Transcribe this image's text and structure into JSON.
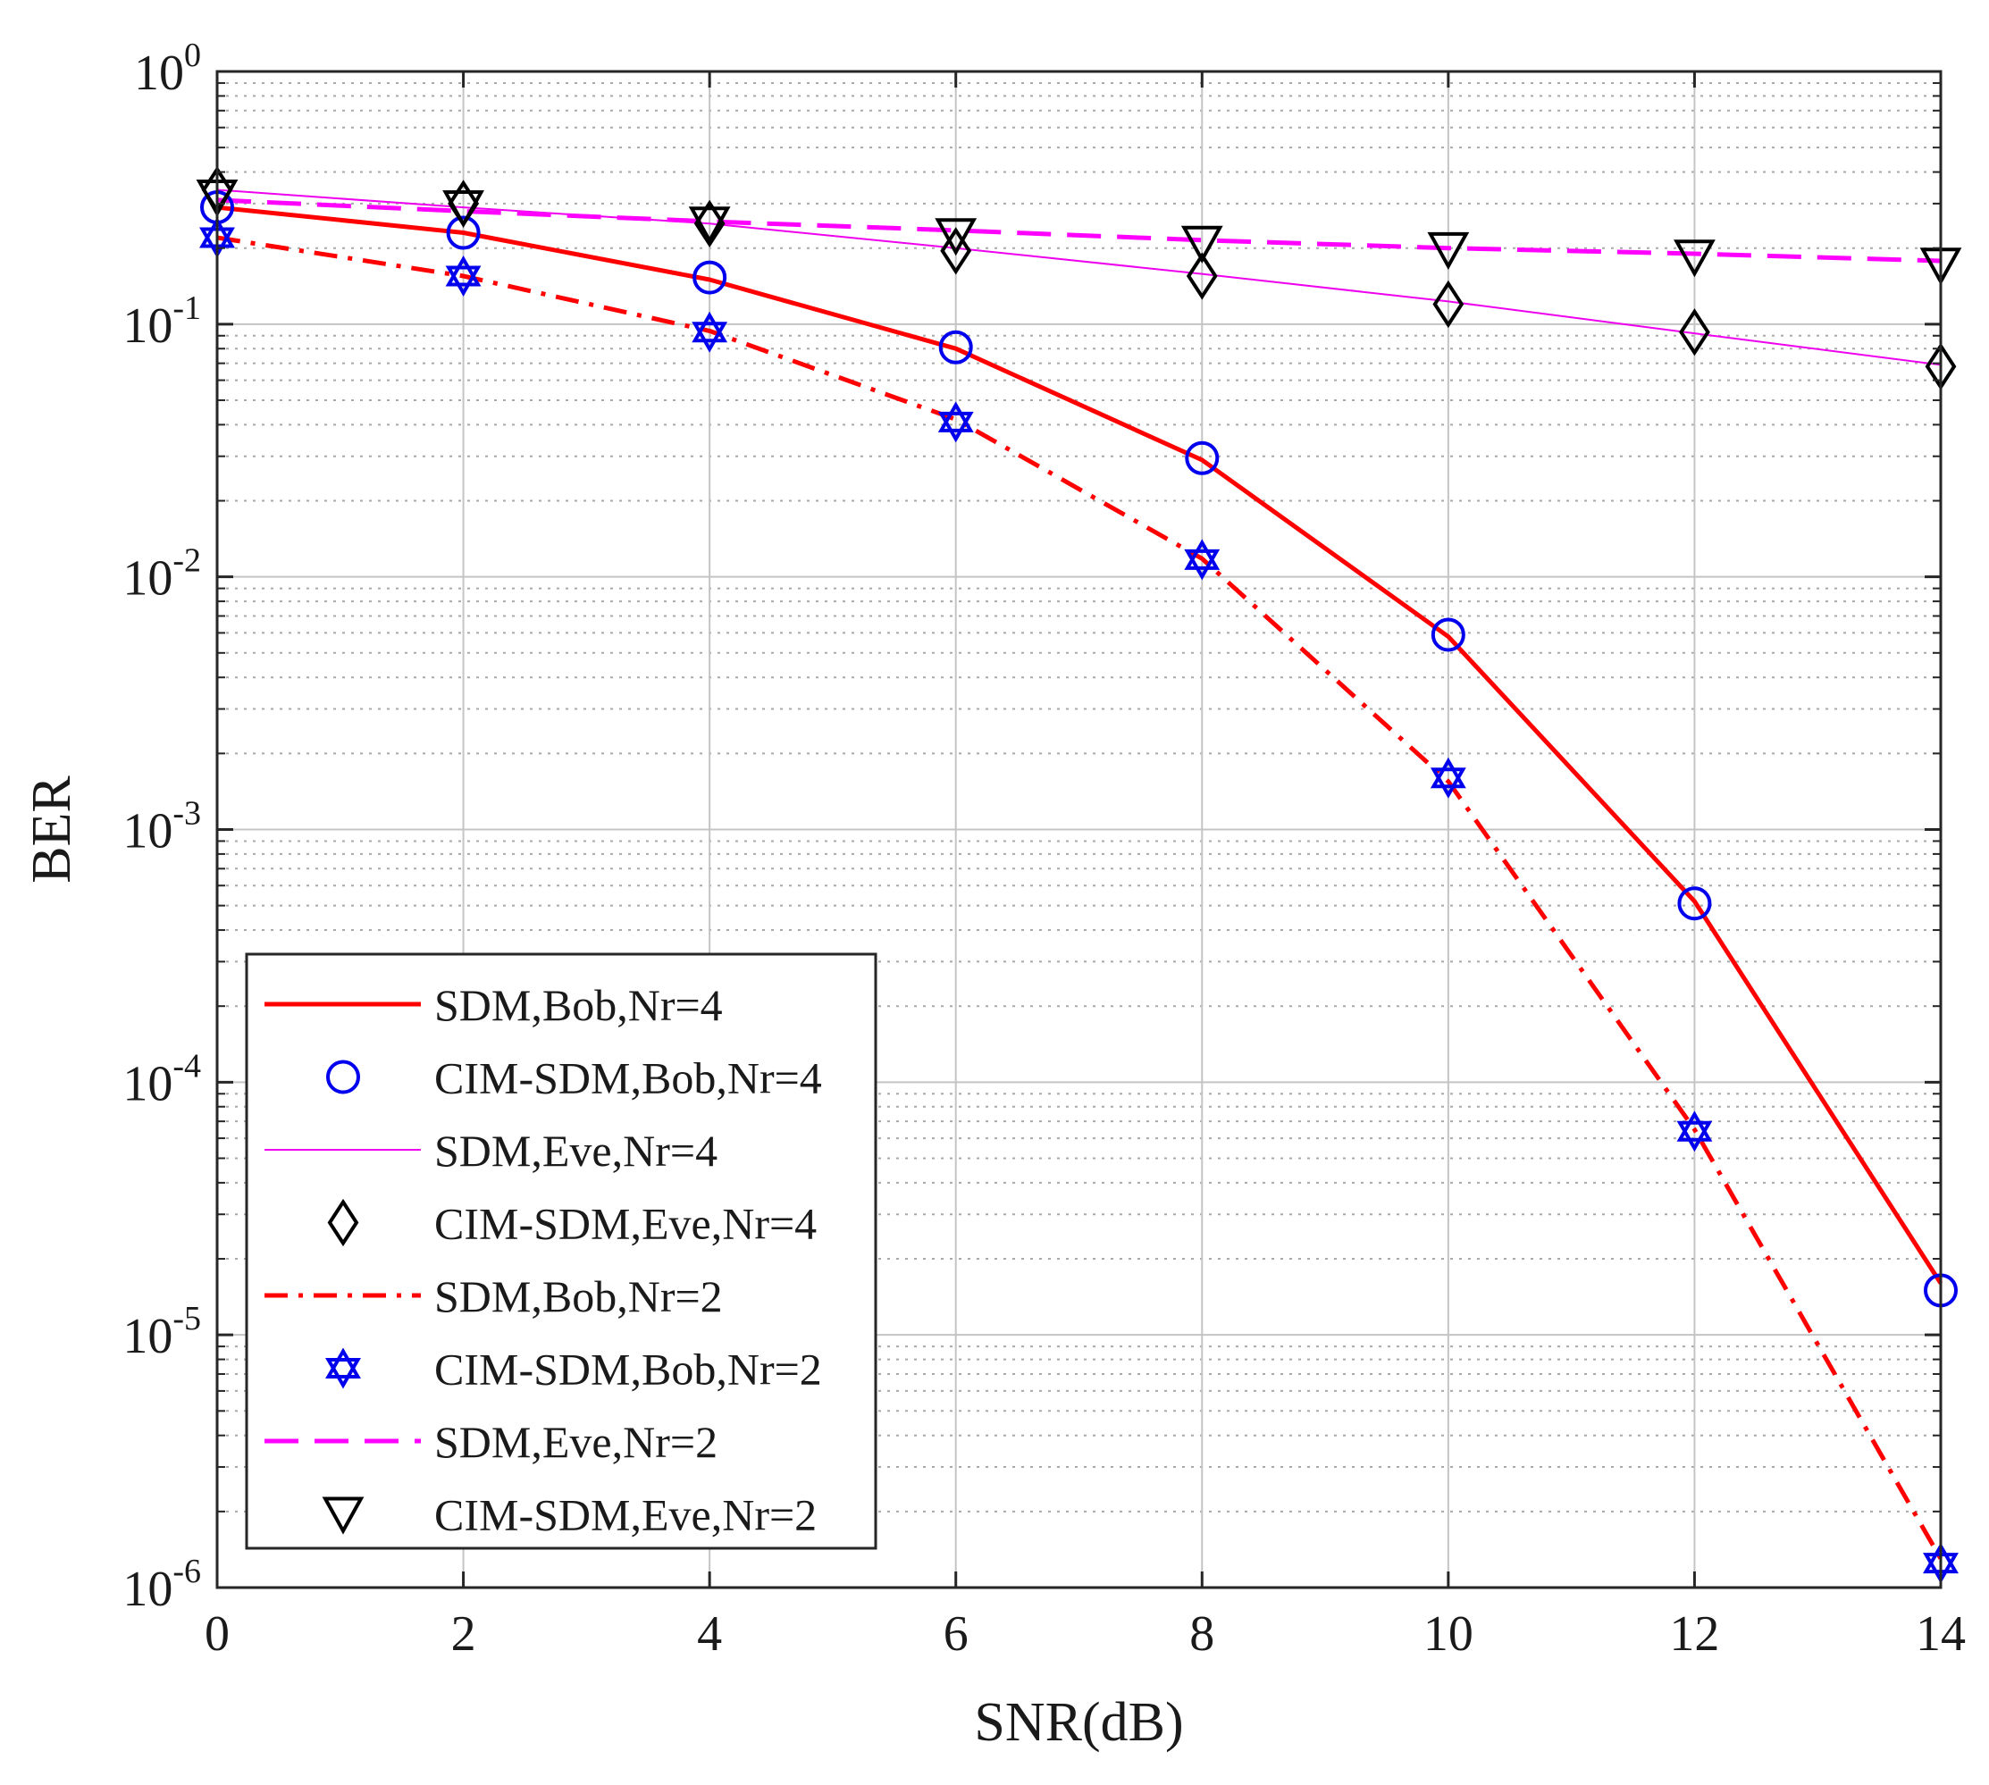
{
  "chart_data": {
    "type": "line",
    "title": "",
    "xlabel": "SNR(dB)",
    "ylabel": "BER",
    "xscale": "linear",
    "yscale": "log",
    "xlim": [
      0,
      14
    ],
    "ylim": [
      1e-06,
      1
    ],
    "xticks": [
      0,
      2,
      4,
      6,
      8,
      10,
      12,
      14
    ],
    "yticks": [
      {
        "base": "10",
        "exp": "0"
      },
      {
        "base": "10",
        "exp": "-1"
      },
      {
        "base": "10",
        "exp": "-2"
      },
      {
        "base": "10",
        "exp": "-3"
      },
      {
        "base": "10",
        "exp": "-4"
      },
      {
        "base": "10",
        "exp": "-5"
      },
      {
        "base": "10",
        "exp": "-6"
      }
    ],
    "grid": true,
    "minor_grid": true,
    "legend_position": "bottom-left",
    "series": [
      {
        "name": "SDM,Bob,Nr=4",
        "style": "line",
        "line": "solid",
        "color": "#ff0000",
        "width": 5,
        "x": [
          0,
          2,
          4,
          6,
          8,
          10,
          12,
          14
        ],
        "values": [
          0.29,
          0.23,
          0.15,
          0.08,
          0.029,
          0.0058,
          0.00052,
          1.6e-05
        ]
      },
      {
        "name": "CIM-SDM,Bob,Nr=4",
        "style": "marker",
        "marker": "circle",
        "color": "#0000ee",
        "x": [
          0,
          2,
          4,
          6,
          8,
          10,
          12,
          14
        ],
        "values": [
          0.29,
          0.23,
          0.153,
          0.081,
          0.0295,
          0.0059,
          0.00051,
          1.5e-05
        ]
      },
      {
        "name": "SDM,Eve,Nr=4",
        "style": "line",
        "line": "solid",
        "color": "#ee00ee",
        "width": 2,
        "x": [
          0,
          2,
          4,
          6,
          8,
          10,
          12,
          14
        ],
        "values": [
          0.34,
          0.29,
          0.25,
          0.2,
          0.158,
          0.123,
          0.092,
          0.069
        ]
      },
      {
        "name": "CIM-SDM,Eve,Nr=4",
        "style": "marker",
        "marker": "diamond",
        "color": "#000000",
        "x": [
          0,
          2,
          4,
          6,
          8,
          10,
          12,
          14
        ],
        "values": [
          0.34,
          0.3,
          0.25,
          0.195,
          0.155,
          0.12,
          0.093,
          0.068
        ]
      },
      {
        "name": "SDM,Bob,Nr=2",
        "style": "line",
        "line": "dashdot",
        "color": "#ff0000",
        "width": 5,
        "x": [
          0,
          2,
          4,
          6,
          8,
          10,
          12,
          14
        ],
        "values": [
          0.22,
          0.155,
          0.094,
          0.042,
          0.0118,
          0.00155,
          6.5e-05,
          1.3e-06
        ]
      },
      {
        "name": "CIM-SDM,Bob,Nr=2",
        "style": "marker",
        "marker": "hexagram",
        "color": "#0000ee",
        "x": [
          0,
          2,
          4,
          6,
          8,
          10,
          12,
          14
        ],
        "values": [
          0.22,
          0.155,
          0.093,
          0.041,
          0.0117,
          0.0016,
          6.4e-05,
          1.25e-06
        ]
      },
      {
        "name": "SDM,Eve,Nr=2",
        "style": "line",
        "line": "dashed",
        "color": "#ff00ff",
        "width": 5,
        "x": [
          0,
          2,
          4,
          6,
          8,
          10,
          12,
          14
        ],
        "values": [
          0.31,
          0.28,
          0.255,
          0.235,
          0.215,
          0.2,
          0.19,
          0.178
        ]
      },
      {
        "name": "CIM-SDM,Eve,Nr=2",
        "style": "marker",
        "marker": "triangle-down",
        "color": "#000000",
        "x": [
          0,
          2,
          4,
          6,
          8,
          10,
          12,
          14
        ],
        "values": [
          0.32,
          0.29,
          0.25,
          0.225,
          0.21,
          0.198,
          0.185,
          0.172
        ]
      }
    ]
  }
}
